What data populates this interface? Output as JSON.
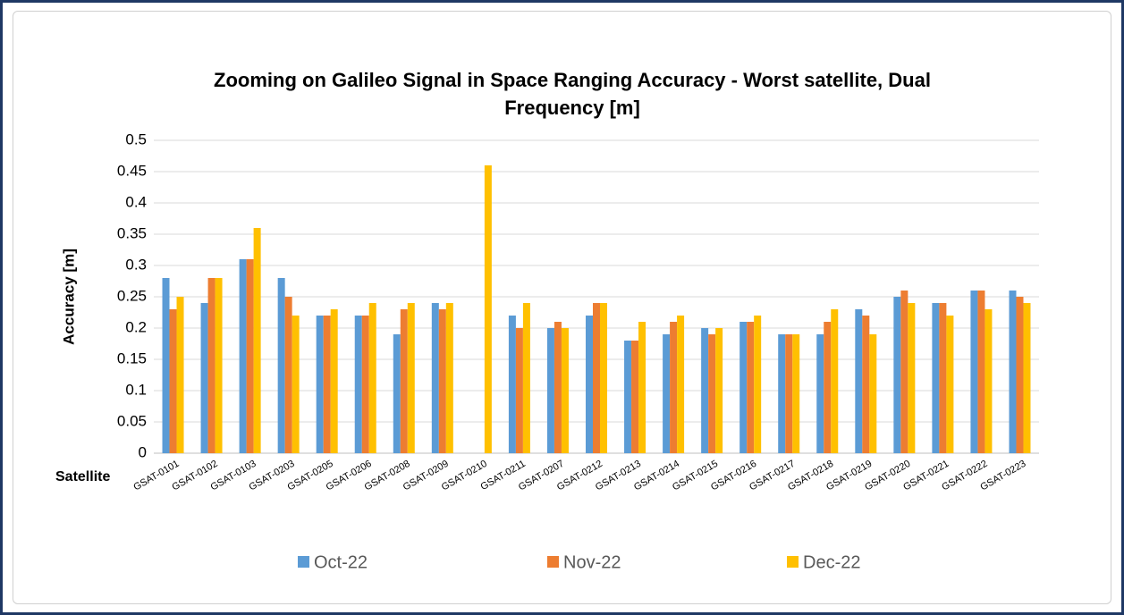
{
  "chart_data": {
    "type": "bar",
    "title": "Zooming on Galileo Signal in Space Ranging Accuracy - Worst satellite, Dual Frequency [m]",
    "y_label": "Accuracy [m]",
    "x_label": "Satellite",
    "categories": [
      "GSAT-0101",
      "GSAT-0102",
      "GSAT-0103",
      "GSAT-0203",
      "GSAT-0205",
      "GSAT-0206",
      "GSAT-0208",
      "GSAT-0209",
      "GSAT-0210",
      "GSAT-0211",
      "GSAT-0207",
      "GSAT-0212",
      "GSAT-0213",
      "GSAT-0214",
      "GSAT-0215",
      "GSAT-0216",
      "GSAT-0217",
      "GSAT-0218",
      "GSAT-0219",
      "GSAT-0220",
      "GSAT-0221",
      "GSAT-0222",
      "GSAT-0223"
    ],
    "series": [
      {
        "name": "Oct-22",
        "color": "#5b9bd5",
        "values": [
          0.28,
          0.24,
          0.31,
          0.28,
          0.22,
          0.22,
          0.19,
          0.24,
          null,
          0.22,
          0.2,
          0.22,
          0.18,
          0.19,
          0.2,
          0.21,
          0.19,
          0.19,
          0.23,
          0.25,
          0.24,
          0.26,
          0.26
        ]
      },
      {
        "name": "Nov-22",
        "color": "#ed7d31",
        "values": [
          0.23,
          0.28,
          0.31,
          0.25,
          0.22,
          0.22,
          0.23,
          0.23,
          null,
          0.2,
          0.21,
          0.24,
          0.18,
          0.21,
          0.19,
          0.21,
          0.19,
          0.21,
          0.22,
          0.26,
          0.24,
          0.26,
          0.25
        ]
      },
      {
        "name": "Dec-22",
        "color": "#ffc000",
        "values": [
          0.25,
          0.28,
          0.36,
          0.22,
          0.23,
          0.24,
          0.24,
          0.24,
          0.46,
          0.24,
          0.2,
          0.24,
          0.21,
          0.22,
          0.2,
          0.22,
          0.19,
          0.23,
          0.19,
          0.24,
          0.22,
          0.23,
          0.24
        ]
      }
    ],
    "ylim": [
      0,
      0.5
    ],
    "yticks": [
      0,
      0.05,
      0.1,
      0.15,
      0.2,
      0.25,
      0.3,
      0.35,
      0.4,
      0.45,
      0.5
    ],
    "grid": true,
    "legend": "bottom"
  }
}
